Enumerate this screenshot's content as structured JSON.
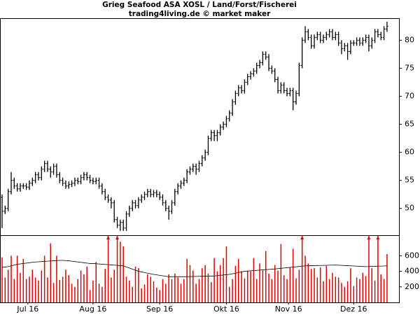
{
  "chart_data": [
    {
      "type": "ohlc",
      "title": "Grieg Seafood ASA XOSL / Land/Forst/Fischerei",
      "subtitle": "trading4living.de © market maker",
      "color": "#000000",
      "open": [
        52,
        49.5,
        50,
        53,
        55,
        54,
        53.5,
        54,
        54,
        53.8,
        54.5,
        55,
        56,
        55.5,
        57,
        58,
        57,
        56.5,
        57.5,
        56,
        55,
        54.5,
        54,
        54.3,
        54.5,
        55,
        54.8,
        55.5,
        56,
        55.5,
        55,
        54.8,
        55,
        54,
        53,
        52,
        51.5,
        51,
        48,
        47,
        47.5,
        46.5,
        49,
        50,
        51,
        50.5,
        51.5,
        52,
        52.5,
        53,
        52.5,
        52.8,
        52.5,
        52,
        51,
        50,
        49.5,
        51,
        53,
        54,
        54.5,
        55,
        56.5,
        57,
        57.5,
        57,
        58,
        59,
        60,
        62.5,
        63.5,
        63,
        63.5,
        64.5,
        65,
        66,
        67,
        69,
        70.5,
        71.5,
        71,
        72.5,
        73.5,
        74,
        74.5,
        75.5,
        76,
        77.5,
        77,
        75,
        74.5,
        73,
        71,
        72,
        71,
        70.5,
        71,
        69,
        70.5,
        75.5,
        80,
        81.5,
        80.5,
        79,
        80.5,
        81,
        80,
        80.5,
        81,
        81.5,
        80.5,
        81,
        79.5,
        78.5,
        79,
        78,
        79.5,
        79.5,
        80,
        79.5,
        80,
        80.5,
        79,
        80,
        81.5,
        81,
        80.5,
        82
      ],
      "high": [
        52.5,
        50.5,
        53.5,
        56.5,
        55.5,
        54.5,
        54.5,
        54.5,
        54.5,
        55,
        55.5,
        56.5,
        56.5,
        57.5,
        58.5,
        58.5,
        57.5,
        58,
        58,
        56.5,
        55.5,
        55,
        54.8,
        55,
        55.5,
        55.5,
        56,
        56.5,
        56.5,
        56,
        55.5,
        55.5,
        55.5,
        54.5,
        53.5,
        52.5,
        52,
        51.5,
        48.5,
        48,
        48,
        49.5,
        50.5,
        51.5,
        51.5,
        52,
        52.5,
        53,
        53.5,
        53.5,
        53.3,
        53.3,
        53,
        52.5,
        51.5,
        50.5,
        51.5,
        53.5,
        54.5,
        55,
        55.5,
        57,
        57.5,
        58,
        58,
        58.5,
        59.5,
        60.5,
        63,
        64,
        64,
        64,
        65,
        65.5,
        66.5,
        67.5,
        69.5,
        71,
        72,
        72,
        73,
        74,
        74.5,
        75,
        76,
        76.5,
        78,
        78,
        77.5,
        75.5,
        75,
        73.5,
        72.5,
        72.5,
        71.5,
        71.5,
        71.5,
        71,
        76,
        80.5,
        82.5,
        82,
        81,
        81,
        81.5,
        81.5,
        81,
        81.5,
        82,
        82,
        81.5,
        81.5,
        80,
        79.5,
        79.5,
        80,
        80,
        80.5,
        80.5,
        80.5,
        81,
        81,
        80.5,
        82,
        82,
        81.5,
        82.5,
        83.3
      ],
      "low": [
        46.5,
        49,
        49.5,
        52.5,
        53.5,
        53,
        53,
        53.5,
        53.3,
        53.3,
        54,
        54.5,
        55,
        55,
        56.5,
        56.5,
        55.5,
        56,
        55.5,
        54.5,
        54,
        53.5,
        53.5,
        53.8,
        54,
        54.3,
        54.3,
        55,
        55,
        54.5,
        54.3,
        54.3,
        53.5,
        52.5,
        51.5,
        51,
        50,
        47.5,
        46.5,
        46,
        46,
        46,
        48.5,
        49.5,
        50,
        50,
        51,
        51.5,
        52,
        52,
        52,
        52,
        51.5,
        50.5,
        49.5,
        48,
        49,
        50.5,
        52.5,
        53.5,
        54,
        54.5,
        56,
        56.5,
        56,
        56.5,
        57.5,
        58.5,
        59.5,
        62,
        62,
        62,
        63,
        64,
        64.5,
        65.5,
        66.5,
        68.5,
        70,
        70.5,
        70.5,
        72,
        73,
        73.5,
        74,
        75,
        75.5,
        76.5,
        74.5,
        74,
        72.5,
        70.5,
        70.5,
        70.5,
        70,
        70,
        67.5,
        68.5,
        70,
        75,
        79.5,
        80,
        78.5,
        78.5,
        80,
        79.5,
        79.5,
        80,
        80.5,
        80,
        80,
        79,
        77.5,
        78,
        76.5,
        77.5,
        79,
        79,
        79,
        79,
        79.5,
        78,
        78.5,
        79.5,
        80.5,
        80,
        80,
        81.5
      ],
      "close": [
        49.5,
        50,
        53,
        55,
        54,
        53.5,
        54,
        54,
        53.8,
        54.5,
        55,
        56,
        55.5,
        57,
        58,
        57,
        56.5,
        57.5,
        56,
        55,
        54.5,
        54,
        54.3,
        54.5,
        55,
        54.8,
        55.5,
        56,
        55.5,
        55,
        54.8,
        55,
        54,
        53,
        52,
        51.5,
        51,
        48,
        47,
        47.5,
        46.5,
        49,
        50,
        51,
        50.5,
        51.5,
        52,
        52.5,
        53,
        52.5,
        52.8,
        52.5,
        52,
        51,
        50,
        49.5,
        51,
        53,
        54,
        54.5,
        55,
        56.5,
        57,
        57.5,
        57,
        58,
        59,
        60,
        62.5,
        63.5,
        63,
        63.5,
        64.5,
        65,
        66,
        67,
        69,
        70.5,
        71.5,
        71,
        72.5,
        73.5,
        74,
        74.5,
        75.5,
        76,
        77.5,
        77,
        75,
        74.5,
        73,
        71,
        72,
        71,
        70.5,
        71,
        69,
        70.5,
        75.5,
        80,
        81.5,
        80.5,
        79,
        80.5,
        81,
        80,
        80.5,
        81,
        81.5,
        80.5,
        81,
        79.5,
        78.5,
        79,
        78,
        79.5,
        79.5,
        80,
        79.5,
        80,
        80.5,
        79,
        80,
        81.5,
        81,
        80.5,
        82,
        82.5
      ],
      "ylim": [
        45.1,
        83.8
      ],
      "yticks": [
        50,
        55,
        60,
        65,
        70,
        75,
        80
      ]
    },
    {
      "type": "volume",
      "color": "#e00000",
      "line_color": "#000000",
      "values": [
        580,
        320,
        420,
        600,
        300,
        600,
        380,
        560,
        300,
        330,
        420,
        320,
        280,
        410,
        600,
        320,
        760,
        250,
        600,
        290,
        330,
        420,
        350,
        240,
        200,
        300,
        410,
        360,
        460,
        160,
        280,
        520,
        240,
        200,
        430,
        950,
        320,
        420,
        1100,
        780,
        720,
        330,
        280,
        200,
        460,
        440,
        180,
        230,
        360,
        330,
        270,
        190,
        160,
        300,
        240,
        360,
        300,
        370,
        320,
        240,
        300,
        560,
        480,
        410,
        240,
        300,
        440,
        480,
        370,
        260,
        570,
        400,
        480,
        570,
        720,
        200,
        300,
        470,
        560,
        400,
        310,
        410,
        400,
        570,
        300,
        500,
        410,
        660,
        370,
        300,
        480,
        410,
        750,
        350,
        300,
        450,
        690,
        310,
        420,
        900,
        600,
        500,
        430,
        440,
        320,
        450,
        270,
        470,
        300,
        380,
        330,
        320,
        250,
        200,
        270,
        440,
        210,
        320,
        300,
        380,
        340,
        1000,
        440,
        280,
        1050,
        360,
        300,
        620
      ],
      "average": [
        450,
        455,
        460,
        470,
        480,
        490,
        495,
        500,
        505,
        510,
        515,
        520,
        522,
        525,
        528,
        530,
        533,
        535,
        538,
        540,
        540,
        538,
        535,
        530,
        525,
        520,
        515,
        510,
        505,
        500,
        500,
        497,
        494,
        491,
        488,
        485,
        482,
        479,
        476,
        473,
        470,
        456,
        442,
        428,
        414,
        400,
        392,
        384,
        376,
        368,
        360,
        354,
        348,
        342,
        336,
        330,
        330,
        330,
        330,
        330,
        330,
        331,
        332,
        333,
        334,
        335,
        336,
        337,
        338,
        339,
        340,
        344,
        348,
        352,
        356,
        360,
        368,
        376,
        384,
        392,
        400,
        403,
        406,
        409,
        412,
        415,
        418,
        421,
        424,
        427,
        430,
        434,
        438,
        442,
        446,
        450,
        454,
        458,
        462,
        466,
        470,
        471,
        472,
        473,
        474,
        475,
        476,
        477,
        478,
        479,
        480,
        478,
        476,
        474,
        472,
        470,
        468,
        466,
        464,
        462,
        460,
        461,
        463,
        464,
        466,
        467,
        468,
        470
      ],
      "ylim": [
        0,
        855
      ],
      "yticks": [
        200,
        400,
        600
      ],
      "xticks": [
        {
          "value": 8.5,
          "label": "Jul 16"
        },
        {
          "value": 30,
          "label": "Aug 16"
        },
        {
          "value": 52,
          "label": "Sep 16"
        },
        {
          "value": 74,
          "label": "Okt 16"
        },
        {
          "value": 94.5,
          "label": "Nov 16"
        },
        {
          "value": 116,
          "label": "Dez 16"
        }
      ]
    }
  ]
}
